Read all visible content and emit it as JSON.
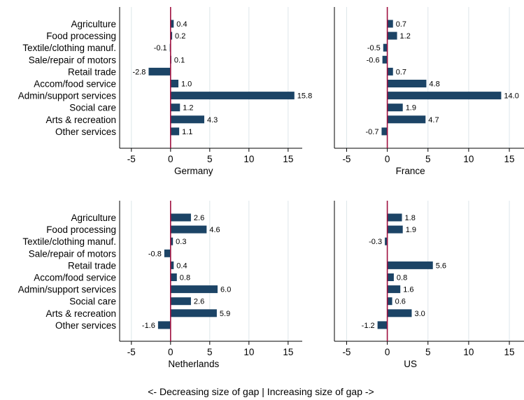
{
  "colors": {
    "bar": "#1c4466",
    "zero_line": "#a01040",
    "grid": "#dde6ea",
    "axis": "#000000"
  },
  "chart_data": [
    {
      "type": "bar",
      "orientation": "horizontal",
      "xlabel": "Germany",
      "xlim": [
        -6.5,
        16.8
      ],
      "xticks": [
        "-5",
        "0",
        "5",
        "10",
        "15"
      ],
      "grid": true,
      "categories": [
        "Agriculture",
        "Food processing",
        "Textile/clothing manuf.",
        "Sale/repair of motors",
        "Retail trade",
        "Accom/food service",
        "Admin/support services",
        "Social care",
        "Arts & recreation",
        "Other services"
      ],
      "values": [
        0.4,
        0.2,
        -0.1,
        0.1,
        -2.8,
        1.0,
        15.8,
        1.2,
        4.3,
        1.1
      ],
      "value_labels": [
        "0.4",
        "0.2",
        "-0.1",
        "0.1",
        "-2.8",
        "1.0",
        "15.8",
        "1.2",
        "4.3",
        "1.1"
      ]
    },
    {
      "type": "bar",
      "orientation": "horizontal",
      "xlabel": "France",
      "xlim": [
        -6.5,
        16.8
      ],
      "xticks": [
        "-5",
        "0",
        "5",
        "10",
        "15"
      ],
      "grid": true,
      "categories": [
        "Agriculture",
        "Food processing",
        "Textile/clothing manuf.",
        "Sale/repair of motors",
        "Retail trade",
        "Accom/food service",
        "Admin/support services",
        "Social care",
        "Arts & recreation",
        "Other services"
      ],
      "values": [
        0.7,
        1.2,
        -0.5,
        -0.6,
        0.7,
        4.8,
        14.0,
        1.9,
        4.7,
        -0.7
      ],
      "value_labels": [
        "0.7",
        "1.2",
        "-0.5",
        "-0.6",
        "0.7",
        "4.8",
        "14.0",
        "1.9",
        "4.7",
        "-0.7"
      ]
    },
    {
      "type": "bar",
      "orientation": "horizontal",
      "xlabel": "Netherlands",
      "xlim": [
        -6.5,
        16.8
      ],
      "xticks": [
        "-5",
        "0",
        "5",
        "10",
        "15"
      ],
      "grid": true,
      "categories": [
        "Agriculture",
        "Food processing",
        "Textile/clothing manuf.",
        "Sale/repair of motors",
        "Retail trade",
        "Accom/food service",
        "Admin/support services",
        "Social care",
        "Arts & recreation",
        "Other services"
      ],
      "values": [
        2.6,
        4.6,
        0.3,
        -0.8,
        0.4,
        0.8,
        6.0,
        2.6,
        5.9,
        -1.6
      ],
      "value_labels": [
        "2.6",
        "4.6",
        "0.3",
        "-0.8",
        "0.4",
        "0.8",
        "6.0",
        "2.6",
        "5.9",
        "-1.6"
      ]
    },
    {
      "type": "bar",
      "orientation": "horizontal",
      "xlabel": "US",
      "xlim": [
        -6.5,
        16.8
      ],
      "xticks": [
        "-5",
        "0",
        "5",
        "10",
        "15"
      ],
      "grid": true,
      "categories": [
        "Agriculture",
        "Food processing",
        "Textile/clothing manuf.",
        "Sale/repair of motors",
        "Retail trade",
        "Accom/food service",
        "Admin/support services",
        "Social care",
        "Arts & recreation",
        "Other services"
      ],
      "values": [
        1.8,
        1.9,
        -0.3,
        0.0,
        5.6,
        0.8,
        1.6,
        0.6,
        3.0,
        -1.2
      ],
      "value_labels": [
        "1.8",
        "1.9",
        "-0.3",
        "",
        "5.6",
        "0.8",
        "1.6",
        "0.6",
        "3.0",
        "-1.2"
      ]
    }
  ],
  "caption": "<- Decreasing size of gap   |   Increasing size of gap ->"
}
